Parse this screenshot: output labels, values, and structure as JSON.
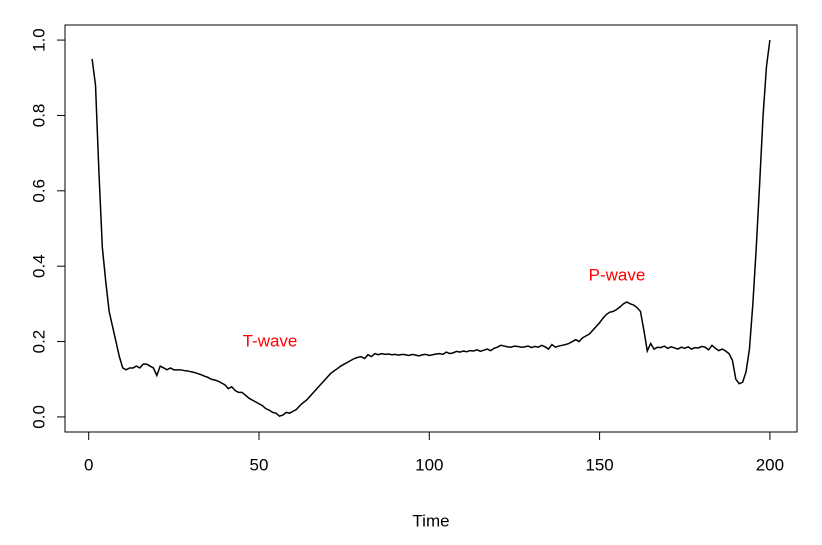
{
  "chart_data": {
    "type": "line",
    "xlabel": "Time",
    "annotations": [
      "T-wave",
      "P-wave"
    ],
    "annotation_color": "#ff0000",
    "color": "#000000",
    "xlim": [
      -6.96,
      207.96
    ],
    "xticks": [
      0,
      50,
      100,
      150,
      200
    ],
    "ylim": [
      -0.04,
      1.04
    ],
    "yticks": [
      {
        "value": 0,
        "label": "0.0"
      },
      0.2,
      0.4,
      0.6,
      0.8,
      {
        "value": 1,
        "label": "1.0"
      }
    ],
    "x": [
      1,
      2,
      3,
      4,
      5,
      6,
      7,
      8,
      9,
      10,
      11,
      12,
      13,
      14,
      15,
      16,
      17,
      18,
      19,
      20,
      21,
      22,
      23,
      24,
      25,
      26,
      27,
      28,
      29,
      30,
      31,
      32,
      33,
      34,
      35,
      36,
      37,
      38,
      39,
      40,
      41,
      42,
      43,
      44,
      45,
      46,
      47,
      48,
      49,
      50,
      51,
      52,
      53,
      54,
      55,
      56,
      57,
      58,
      59,
      60,
      61,
      62,
      63,
      64,
      65,
      66,
      67,
      68,
      69,
      70,
      71,
      72,
      73,
      74,
      75,
      76,
      77,
      78,
      79,
      80,
      81,
      82,
      83,
      84,
      85,
      86,
      87,
      88,
      89,
      90,
      91,
      92,
      93,
      94,
      95,
      96,
      97,
      98,
      99,
      100,
      101,
      102,
      103,
      104,
      105,
      106,
      107,
      108,
      109,
      110,
      111,
      112,
      113,
      114,
      115,
      116,
      117,
      118,
      119,
      120,
      121,
      122,
      123,
      124,
      125,
      126,
      127,
      128,
      129,
      130,
      131,
      132,
      133,
      134,
      135,
      136,
      137,
      138,
      139,
      140,
      141,
      142,
      143,
      144,
      145,
      146,
      147,
      148,
      149,
      150,
      151,
      152,
      153,
      154,
      155,
      156,
      157,
      158,
      159,
      160,
      161,
      162,
      163,
      164,
      165,
      166,
      167,
      168,
      169,
      170,
      171,
      172,
      173,
      174,
      175,
      176,
      177,
      178,
      179,
      180,
      181,
      182,
      183,
      184,
      185,
      186,
      187,
      188,
      189,
      190,
      191,
      192,
      193,
      194,
      195,
      196,
      197,
      198,
      199,
      200
    ],
    "values": [
      0.95,
      0.88,
      0.65,
      0.45,
      0.36,
      0.28,
      0.24,
      0.2,
      0.16,
      0.13,
      0.125,
      0.13,
      0.13,
      0.135,
      0.13,
      0.14,
      0.14,
      0.135,
      0.13,
      0.11,
      0.135,
      0.13,
      0.125,
      0.13,
      0.125,
      0.125,
      0.125,
      0.123,
      0.122,
      0.12,
      0.118,
      0.115,
      0.112,
      0.108,
      0.105,
      0.1,
      0.098,
      0.095,
      0.09,
      0.085,
      0.075,
      0.08,
      0.07,
      0.065,
      0.065,
      0.058,
      0.05,
      0.045,
      0.04,
      0.035,
      0.03,
      0.022,
      0.018,
      0.012,
      0.01,
      0.002,
      0.005,
      0.012,
      0.01,
      0.015,
      0.02,
      0.03,
      0.038,
      0.045,
      0.055,
      0.065,
      0.075,
      0.085,
      0.095,
      0.105,
      0.115,
      0.122,
      0.128,
      0.135,
      0.14,
      0.145,
      0.15,
      0.155,
      0.158,
      0.16,
      0.155,
      0.165,
      0.16,
      0.168,
      0.165,
      0.168,
      0.166,
      0.167,
      0.165,
      0.166,
      0.164,
      0.166,
      0.165,
      0.163,
      0.166,
      0.164,
      0.162,
      0.165,
      0.166,
      0.163,
      0.165,
      0.167,
      0.168,
      0.166,
      0.172,
      0.168,
      0.17,
      0.174,
      0.172,
      0.175,
      0.173,
      0.176,
      0.175,
      0.178,
      0.174,
      0.177,
      0.18,
      0.176,
      0.182,
      0.185,
      0.19,
      0.188,
      0.186,
      0.185,
      0.188,
      0.187,
      0.185,
      0.186,
      0.188,
      0.184,
      0.187,
      0.185,
      0.19,
      0.186,
      0.18,
      0.192,
      0.185,
      0.188,
      0.19,
      0.192,
      0.195,
      0.2,
      0.205,
      0.2,
      0.21,
      0.215,
      0.22,
      0.23,
      0.24,
      0.25,
      0.262,
      0.272,
      0.278,
      0.28,
      0.285,
      0.292,
      0.3,
      0.305,
      0.3,
      0.297,
      0.29,
      0.28,
      0.23,
      0.175,
      0.195,
      0.18,
      0.185,
      0.184,
      0.188,
      0.182,
      0.186,
      0.183,
      0.18,
      0.185,
      0.182,
      0.186,
      0.18,
      0.184,
      0.183,
      0.187,
      0.185,
      0.178,
      0.19,
      0.182,
      0.176,
      0.18,
      0.175,
      0.168,
      0.15,
      0.1,
      0.088,
      0.092,
      0.12,
      0.18,
      0.3,
      0.45,
      0.62,
      0.8,
      0.93,
      1.0
    ]
  }
}
